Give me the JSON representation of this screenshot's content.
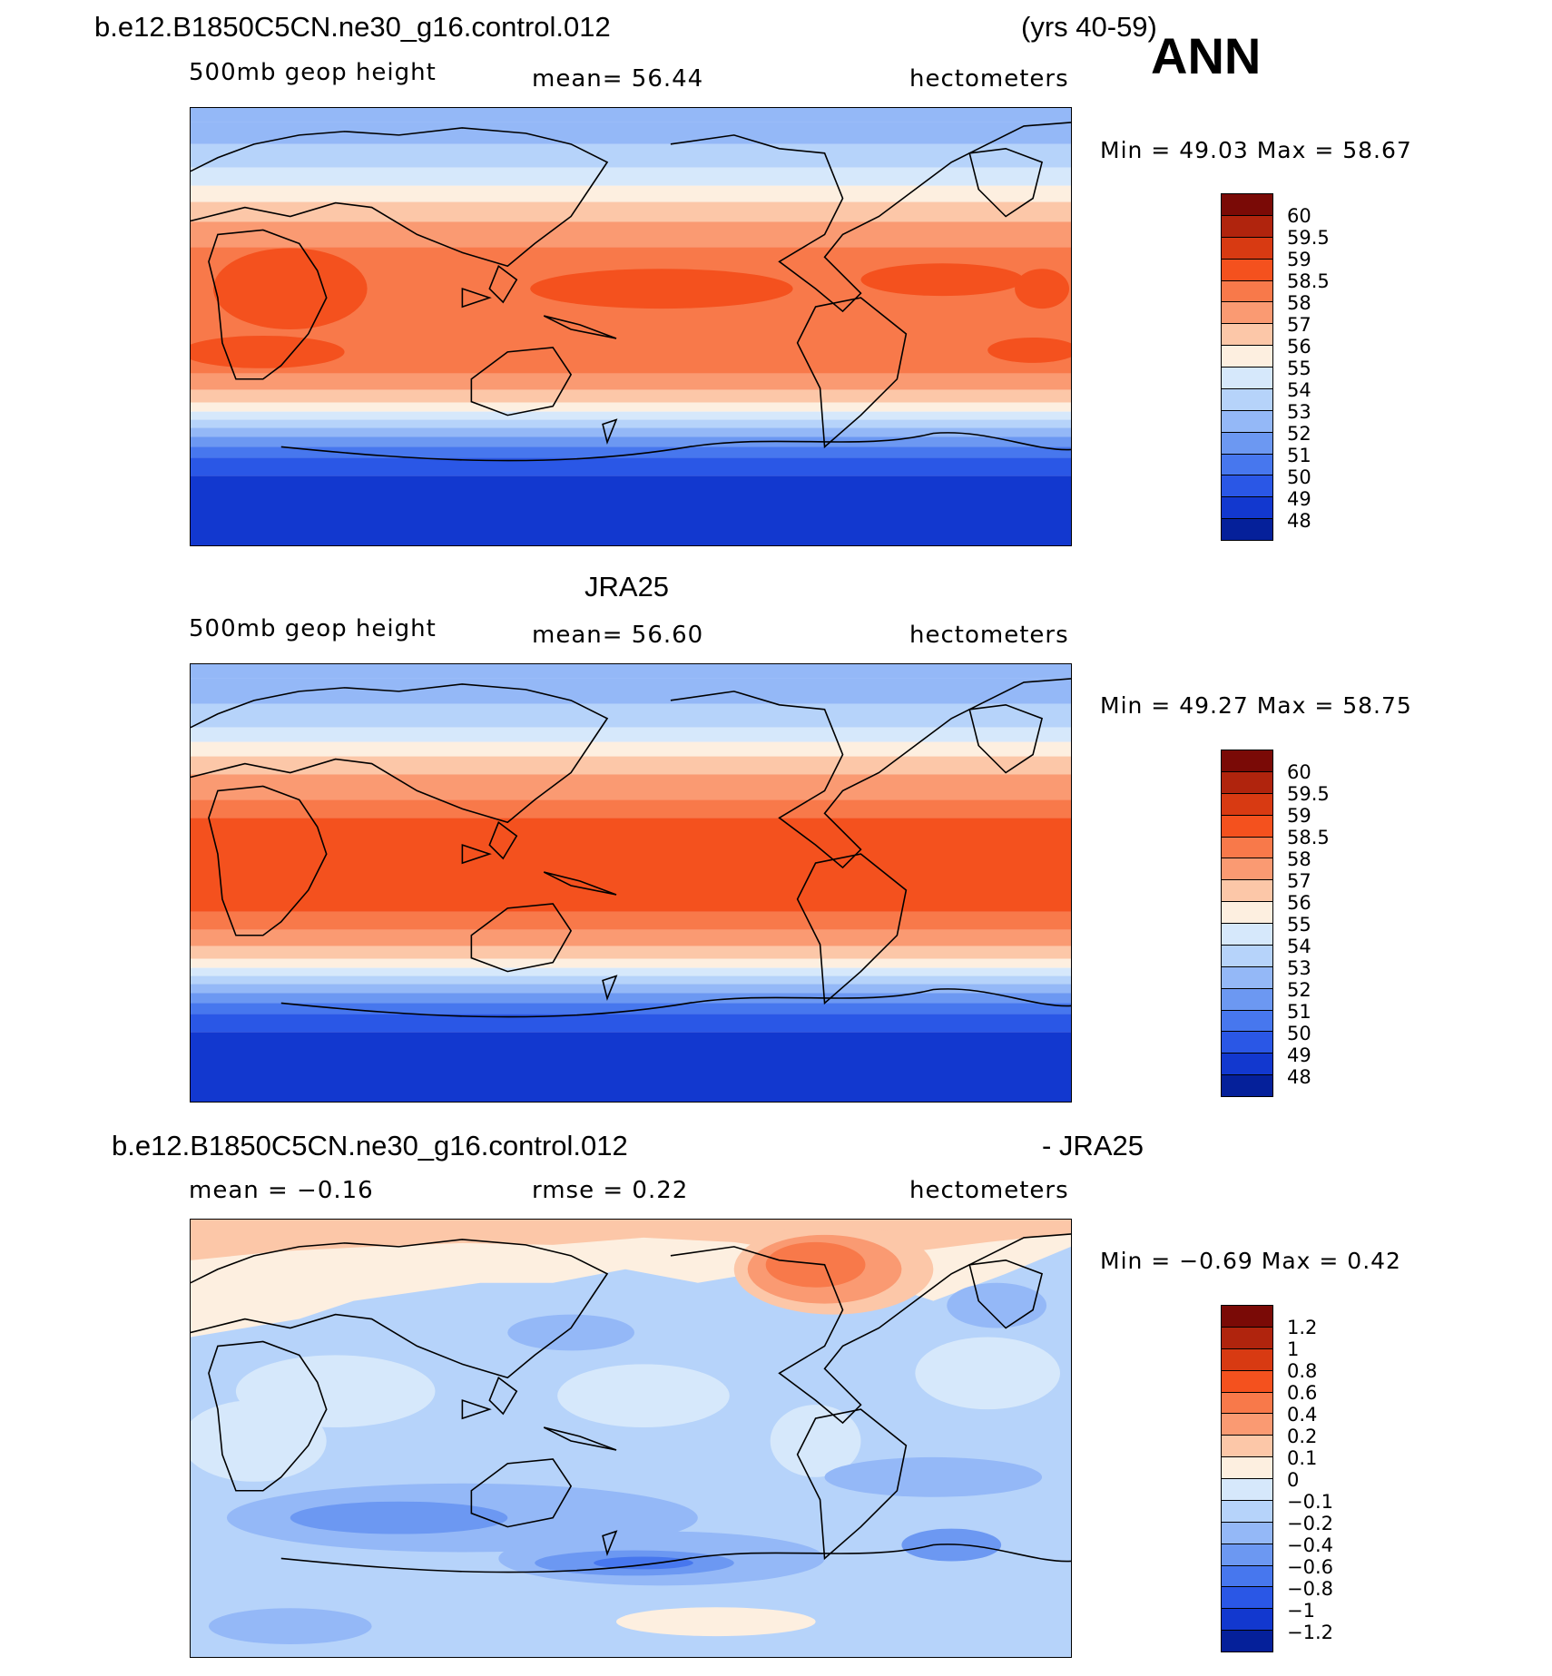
{
  "header": {
    "case_name": "b.e12.B1850C5CN.ne30_g16.control.012",
    "years": "(yrs 40-59)",
    "season": "ANN"
  },
  "panels": [
    {
      "id": "model",
      "variable": "500mb geop height",
      "mean_text": "mean=   56.44",
      "units": "hectometers",
      "minmax_text": "Min =   49.03  Max =   58.67",
      "min": 49.03,
      "max": 58.67
    },
    {
      "id": "obs",
      "title": "JRA25",
      "variable": "500mb geop height",
      "mean_text": "mean=   56.60",
      "units": "hectometers",
      "minmax_text": "Min =   49.27  Max =   58.75",
      "min": 49.27,
      "max": 58.75
    },
    {
      "id": "diff",
      "title_left": "b.e12.B1850C5CN.ne30_g16.control.012",
      "title_right": "- JRA25",
      "mean_text": "mean =   −0.16",
      "rmse_text": "rmse =     0.22",
      "units": "hectometers",
      "minmax_text": "Min =   −0.69  Max =     0.42",
      "min": -0.69,
      "max": 0.42
    }
  ],
  "colorbars": {
    "height_levels": [
      "60",
      "59.5",
      "59",
      "58.5",
      "58",
      "57",
      "56",
      "55",
      "54",
      "53",
      "52",
      "51",
      "50",
      "49",
      "48"
    ],
    "diff_levels": [
      "1.2",
      "1",
      "0.8",
      "0.6",
      "0.4",
      "0.2",
      "0.1",
      "0",
      "−0.1",
      "−0.2",
      "−0.4",
      "−0.6",
      "−0.8",
      "−1",
      "−1.2"
    ],
    "colors": [
      "#7a0a06",
      "#b0240d",
      "#d83a12",
      "#f4511e",
      "#f8794a",
      "#fa9a72",
      "#fcc7a8",
      "#fdefe0",
      "#d6e8fb",
      "#b6d3fa",
      "#94b8f7",
      "#6c98f2",
      "#4777ee",
      "#2a57e6",
      "#1238cf",
      "#05209a"
    ]
  }
}
